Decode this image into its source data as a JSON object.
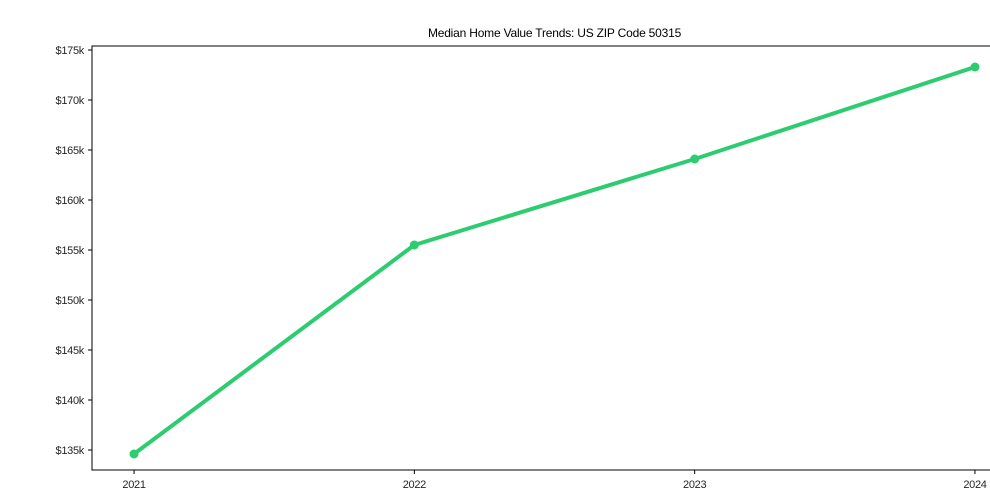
{
  "chart_data": {
    "type": "line",
    "title": "Median Home Value Trends: US ZIP Code 50315",
    "categories": [
      "2021",
      "2022",
      "2023",
      "2024"
    ],
    "values": [
      134600,
      155500,
      164100,
      173300
    ],
    "xlabel": "",
    "ylabel": "",
    "y_ticks": [
      135000,
      140000,
      145000,
      150000,
      155000,
      160000,
      165000,
      170000,
      175000
    ],
    "y_tick_labels": [
      "$135k",
      "$140k",
      "$145k",
      "$150k",
      "$155k",
      "$160k",
      "$165k",
      "$170k",
      "$175k"
    ],
    "ylim": [
      133000,
      175400
    ],
    "x_margin_fraction": 0.05,
    "grid": false,
    "legend": "none",
    "marker": "circle",
    "line_color": "#2ecc71",
    "axis_color": "#000000",
    "text_color": "#262626",
    "background_color": "#ffffff",
    "line_width": 4,
    "marker_radius": 4.5
  }
}
